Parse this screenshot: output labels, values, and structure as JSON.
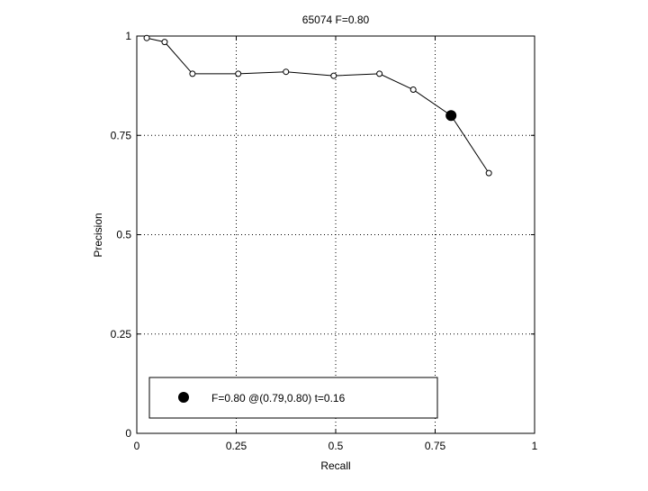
{
  "chart_data": {
    "type": "line",
    "title": "65074 F=0.80",
    "xlabel": "Recall",
    "ylabel": "Precision",
    "xlim": [
      0,
      1
    ],
    "ylim": [
      0,
      1
    ],
    "xticks": [
      "0",
      "0.25",
      "0.5",
      "0.75",
      "1"
    ],
    "yticks": [
      "0",
      "0.25",
      "0.5",
      "0.75",
      "1"
    ],
    "grid": true,
    "series": [
      {
        "x": [
          0.025,
          0.07,
          0.14,
          0.255,
          0.375,
          0.495,
          0.61,
          0.695,
          0.79,
          0.885
        ],
        "y": [
          0.995,
          0.985,
          0.905,
          0.905,
          0.91,
          0.9,
          0.905,
          0.865,
          0.8,
          0.655
        ]
      }
    ],
    "best_point": {
      "x": 0.79,
      "y": 0.8
    },
    "legend": {
      "position": "bottom-left",
      "label": "F=0.80 @(0.79,0.80) t=0.16"
    }
  }
}
